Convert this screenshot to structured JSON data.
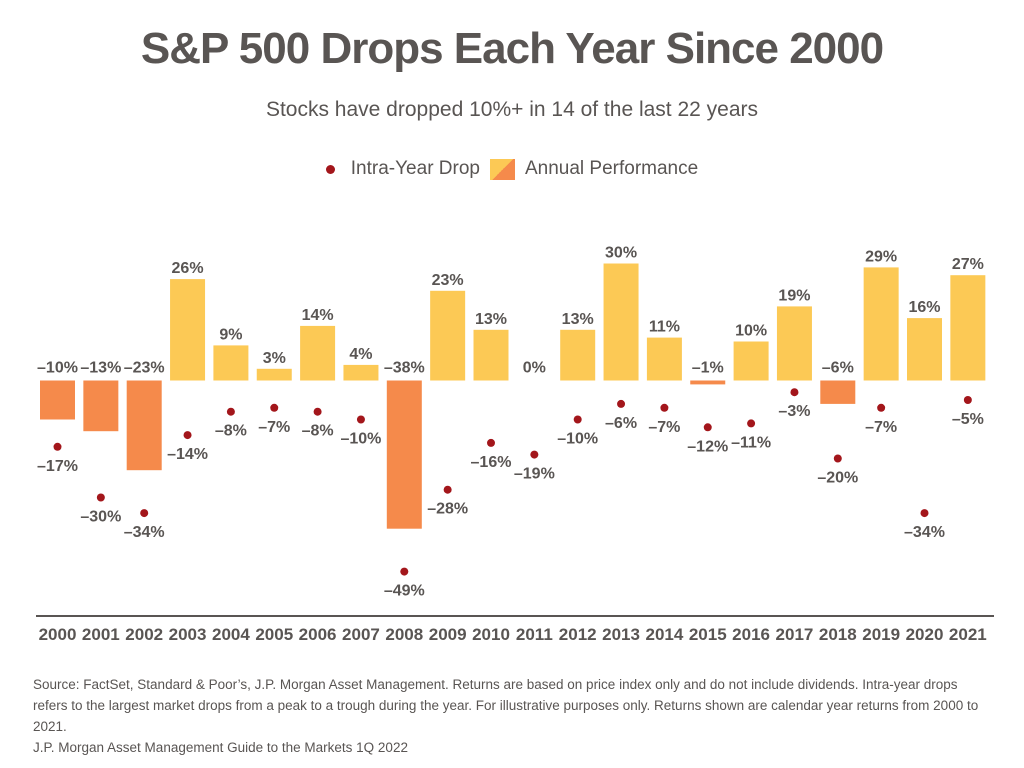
{
  "header": {
    "title": "S&P 500 Drops Each Year Since 2000",
    "subtitle": "Stocks have dropped 10%+ in 14 of the last 22 years"
  },
  "legend": {
    "drop_label": "Intra-Year Drop",
    "annual_label": "Annual Performance"
  },
  "colors": {
    "positive": "#fcc955",
    "negative": "#f58a4b",
    "drop_dot": "#a3161b",
    "axis": "#595553",
    "text": "#595553"
  },
  "chart_data": {
    "type": "bar",
    "title": "S&P 500 Drops Each Year Since 2000",
    "subtitle": "Stocks have dropped 10%+ in 14 of the last 22 years",
    "categories": [
      "2000",
      "2001",
      "2002",
      "2003",
      "2004",
      "2005",
      "2006",
      "2007",
      "2008",
      "2009",
      "2010",
      "2011",
      "2012",
      "2013",
      "2014",
      "2015",
      "2016",
      "2017",
      "2018",
      "2019",
      "2020",
      "2021"
    ],
    "series": [
      {
        "name": "Annual Performance",
        "kind": "bar",
        "values": [
          -10,
          -13,
          -23,
          26,
          9,
          3,
          14,
          4,
          -38,
          23,
          13,
          0,
          13,
          30,
          11,
          -1,
          10,
          19,
          -6,
          29,
          16,
          27
        ],
        "labels": [
          "–10%",
          "–13%",
          "–23%",
          "26%",
          "9%",
          "3%",
          "14%",
          "4%",
          "–38%",
          "23%",
          "13%",
          "0%",
          "13%",
          "30%",
          "11%",
          "–1%",
          "10%",
          "19%",
          "–6%",
          "29%",
          "16%",
          "27%"
        ]
      },
      {
        "name": "Intra-Year Drop",
        "kind": "dot",
        "values": [
          -17,
          -30,
          -34,
          -14,
          -8,
          -7,
          -8,
          -10,
          -49,
          -28,
          -16,
          -19,
          -10,
          -6,
          -7,
          -12,
          -11,
          -3,
          -20,
          -7,
          -34,
          -5
        ],
        "labels": [
          "–17%",
          "–30%",
          "–34%",
          "–14%",
          "–8%",
          "–7%",
          "–8%",
          "–10%",
          "–49%",
          "–28%",
          "–16%",
          "–19%",
          "–10%",
          "–6%",
          "–7%",
          "–12%",
          "–11%",
          "–3%",
          "–20%",
          "–7%",
          "–34%",
          "–5%"
        ]
      }
    ],
    "ylim": [
      -55,
      36
    ],
    "grid": false,
    "legend_position": "top-center"
  },
  "footer": {
    "source_line1": "Source: FactSet, Standard & Poor’s, J.P. Morgan Asset Management. Returns are based on price index only and do not include dividends. Intra-year drops refers to the largest market drops from a peak to a trough during the year. For illustrative purposes only. Returns shown are calendar year returns from 2000 to 2021.",
    "source_line2": "J.P. Morgan Asset Management Guide to the Markets 1Q 2022"
  }
}
